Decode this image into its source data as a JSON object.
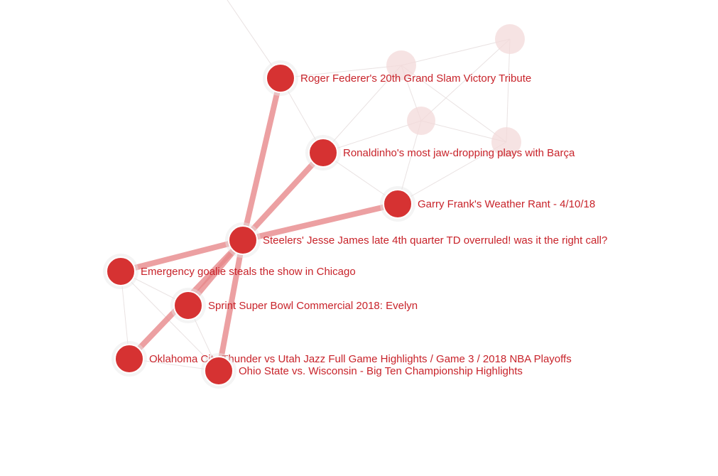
{
  "graph": {
    "colors": {
      "node": "#d63232",
      "label": "#c8232a",
      "strong_edge": "#e8898b",
      "faint_edge": "#e9e2e2",
      "faded_node": "#f3dada"
    },
    "center": "steelers",
    "nodes": [
      {
        "id": "federer",
        "label": "Roger Federer's  20th Grand Slam Victory Tribute"
      },
      {
        "id": "ronaldinho",
        "label": "Ronaldinho's most jaw-dropping plays with Barça"
      },
      {
        "id": "frank",
        "label": "Garry Frank's Weather Rant - 4/10/18"
      },
      {
        "id": "steelers",
        "label": "Steelers' Jesse James late 4th quarter TD overruled! was it the right call?"
      },
      {
        "id": "goalie",
        "label": "Emergency goalie steals the show in Chicago"
      },
      {
        "id": "sprint",
        "label": "Sprint Super Bowl Commercial 2018: Evelyn"
      },
      {
        "id": "okc",
        "label": "Oklahoma City Thunder vs Utah Jazz Full Game Highlights / Game 3 / 2018 NBA Playoffs"
      },
      {
        "id": "ohio",
        "label": "Ohio State vs. Wisconsin - Big Ten Championship Highlights"
      }
    ],
    "edges": [
      [
        "steelers",
        "federer"
      ],
      [
        "steelers",
        "ronaldinho"
      ],
      [
        "steelers",
        "frank"
      ],
      [
        "steelers",
        "goalie"
      ],
      [
        "steelers",
        "sprint"
      ],
      [
        "steelers",
        "okc"
      ],
      [
        "steelers",
        "ohio"
      ]
    ]
  }
}
